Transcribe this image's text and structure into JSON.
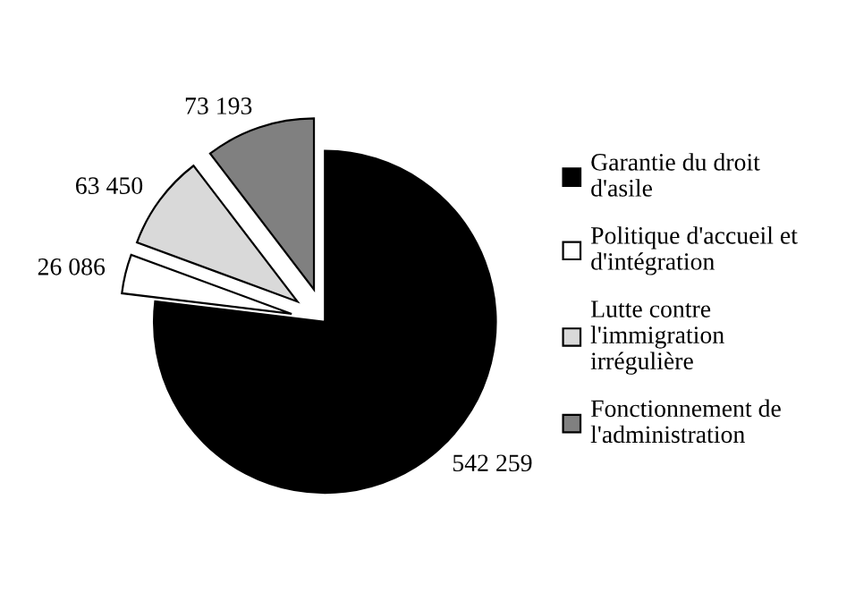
{
  "chart_data": {
    "type": "pie",
    "categories": [
      "Garantie du droit\nd'asile",
      "Politique d'accueil et\nd'intégration",
      "Lutte contre\nl'immigration\nirrégulière",
      "Fonctionnement de\nl'administration"
    ],
    "values": [
      542259,
      26086,
      63450,
      73193
    ],
    "value_labels": [
      "542 259",
      "26 086",
      "63 450",
      "73 193"
    ],
    "colors": [
      "#000000",
      "#ffffff",
      "#d9d9d9",
      "#808080"
    ],
    "legend": "right"
  }
}
